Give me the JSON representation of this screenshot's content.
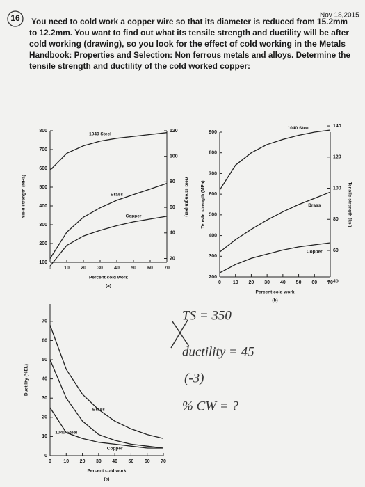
{
  "header": {
    "date": "Nov 18,2015"
  },
  "problem": {
    "number": "16",
    "lines": [
      "You need to cold work a copper wire so that its diameter is reduced from 15.2mm",
      "to 12.2mm.  You want to find out what its tensile strength and ductility will be after",
      "cold working (drawing), so you look for the effect of cold working in the Metals",
      "Handbook: Properties and Selection: Non ferrous metals and alloys.  Determine the",
      "tensile strength and ductility of the cold worked copper:"
    ]
  },
  "chart_data": [
    {
      "type": "line",
      "x_label": "Percent cold work",
      "caption": "(a)",
      "y_label": "Yield strength (MPa)",
      "y2_label": "Yield strength (ksi)",
      "x": [
        0,
        10,
        20,
        30,
        40,
        50,
        60,
        70
      ],
      "xlim": [
        0,
        70
      ],
      "xticks": [
        0,
        10,
        20,
        30,
        40,
        50,
        60,
        70
      ],
      "ylim": [
        100,
        800
      ],
      "yticks": [
        100,
        200,
        300,
        400,
        500,
        600,
        700,
        800
      ],
      "y2lim": [
        17,
        120
      ],
      "y2ticks": [
        20,
        40,
        60,
        80,
        100,
        120
      ],
      "series": [
        {
          "name": "1040 Steel",
          "color": "#222222",
          "values": [
            590,
            680,
            720,
            745,
            760,
            770,
            780,
            790
          ]
        },
        {
          "name": "Brass",
          "color": "#222222",
          "values": [
            120,
            260,
            340,
            390,
            430,
            460,
            490,
            520
          ]
        },
        {
          "name": "Copper",
          "color": "#222222",
          "values": [
            80,
            190,
            240,
            270,
            295,
            315,
            330,
            345
          ]
        }
      ]
    },
    {
      "type": "line",
      "x_label": "Percent cold work",
      "caption": "(b)",
      "y_label": "Tensile strength (MPa)",
      "y2_label": "Tensile strength (ksi)",
      "x": [
        0,
        10,
        20,
        30,
        40,
        50,
        60,
        70
      ],
      "xlim": [
        0,
        70
      ],
      "xticks": [
        0,
        10,
        20,
        30,
        40,
        50,
        60,
        70
      ],
      "ylim": [
        200,
        900
      ],
      "yticks": [
        200,
        300,
        400,
        500,
        600,
        700,
        800,
        900
      ],
      "y2lim": [
        43,
        136
      ],
      "y2ticks": [
        40,
        60,
        80,
        100,
        120,
        140
      ],
      "series": [
        {
          "name": "1040 Steel",
          "color": "#222222",
          "values": [
            620,
            740,
            800,
            840,
            865,
            885,
            900,
            910
          ]
        },
        {
          "name": "Brass",
          "color": "#222222",
          "values": [
            320,
            380,
            430,
            475,
            515,
            550,
            580,
            610
          ]
        },
        {
          "name": "Copper",
          "color": "#222222",
          "values": [
            220,
            260,
            290,
            310,
            330,
            345,
            355,
            365
          ]
        }
      ]
    },
    {
      "type": "line",
      "x_label": "Percent cold work",
      "caption": "(c)",
      "y_label": "Ductility (%EL)",
      "x": [
        0,
        10,
        20,
        30,
        40,
        50,
        60,
        70
      ],
      "xlim": [
        0,
        70
      ],
      "xticks": [
        0,
        10,
        20,
        30,
        40,
        50,
        60,
        70
      ],
      "ylim": [
        0,
        79
      ],
      "yticks": [
        0,
        10,
        20,
        30,
        40,
        50,
        60,
        70
      ],
      "series": [
        {
          "name": "Brass",
          "color": "#222222",
          "values": [
            68,
            45,
            32,
            24,
            18,
            14,
            11,
            9
          ]
        },
        {
          "name": "1040 Steel",
          "color": "#222222",
          "values": [
            25,
            12,
            9,
            7,
            6,
            5,
            4,
            4
          ]
        },
        {
          "name": "Copper",
          "color": "#222222",
          "values": [
            50,
            30,
            18,
            11,
            8,
            6,
            5,
            4
          ]
        }
      ]
    }
  ],
  "notes": [
    "TS = 350",
    "ductility = 45",
    "(-3)",
    "% CW = ?"
  ]
}
